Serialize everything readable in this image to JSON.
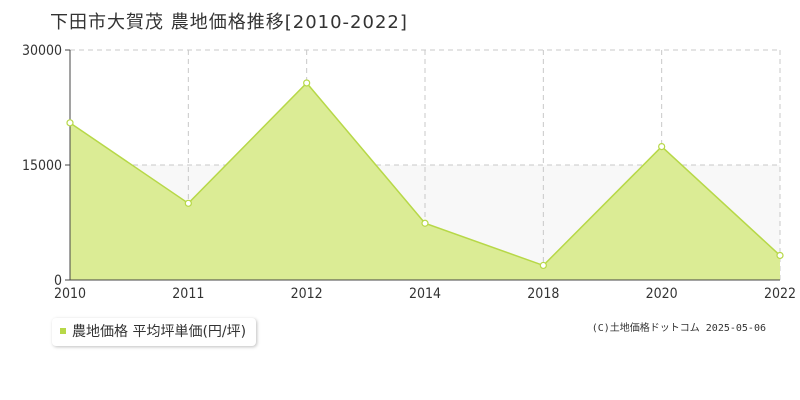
{
  "title": "下田市大賀茂 農地価格推移[2010-2022]",
  "legend_label": "農地価格 平均坪単価(円/坪)",
  "copyright": "(C)土地価格ドットコム 2025-05-06",
  "colors": {
    "area_fill": "#dbec95",
    "line": "#b7d848",
    "marker_fill": "#ffffff",
    "grid": "#c8c8c8",
    "band": "#f8f8f8"
  },
  "chart_data": {
    "type": "area",
    "categories": [
      "2010",
      "2011",
      "2012",
      "2014",
      "2018",
      "2020",
      "2022"
    ],
    "values": [
      20500,
      10000,
      25700,
      7400,
      1900,
      17400,
      3200
    ],
    "ylim": [
      0,
      30000
    ],
    "yticks": [
      "0",
      "15000",
      "30000"
    ],
    "grid": true,
    "legend_position": "bottom-left"
  }
}
